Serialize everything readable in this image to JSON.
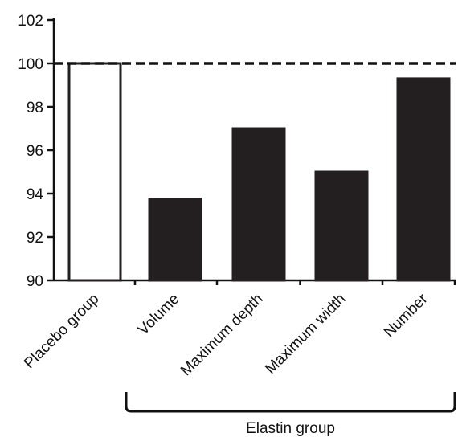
{
  "chart_data": {
    "type": "bar",
    "categories": [
      "Placebo group",
      "Volume",
      "Maximum depth",
      "Maximum width",
      "Number"
    ],
    "values": [
      100,
      93.75,
      97,
      95,
      99.3
    ],
    "bar_fills": [
      "#ffffff",
      "#231f20",
      "#231f20",
      "#231f20",
      "#231f20"
    ],
    "bar_outline_color": "#231f20",
    "ylim": [
      90,
      102
    ],
    "yticks": [
      90,
      92,
      94,
      96,
      98,
      100,
      102
    ],
    "reference_line": {
      "value": 100,
      "style": "dashed",
      "color": "#111111"
    },
    "grid": false,
    "group_bracket": {
      "label": "Elastin group",
      "covers": [
        "Volume",
        "Maximum depth",
        "Maximum width",
        "Number"
      ]
    },
    "title": "",
    "xlabel": "",
    "ylabel": ""
  }
}
